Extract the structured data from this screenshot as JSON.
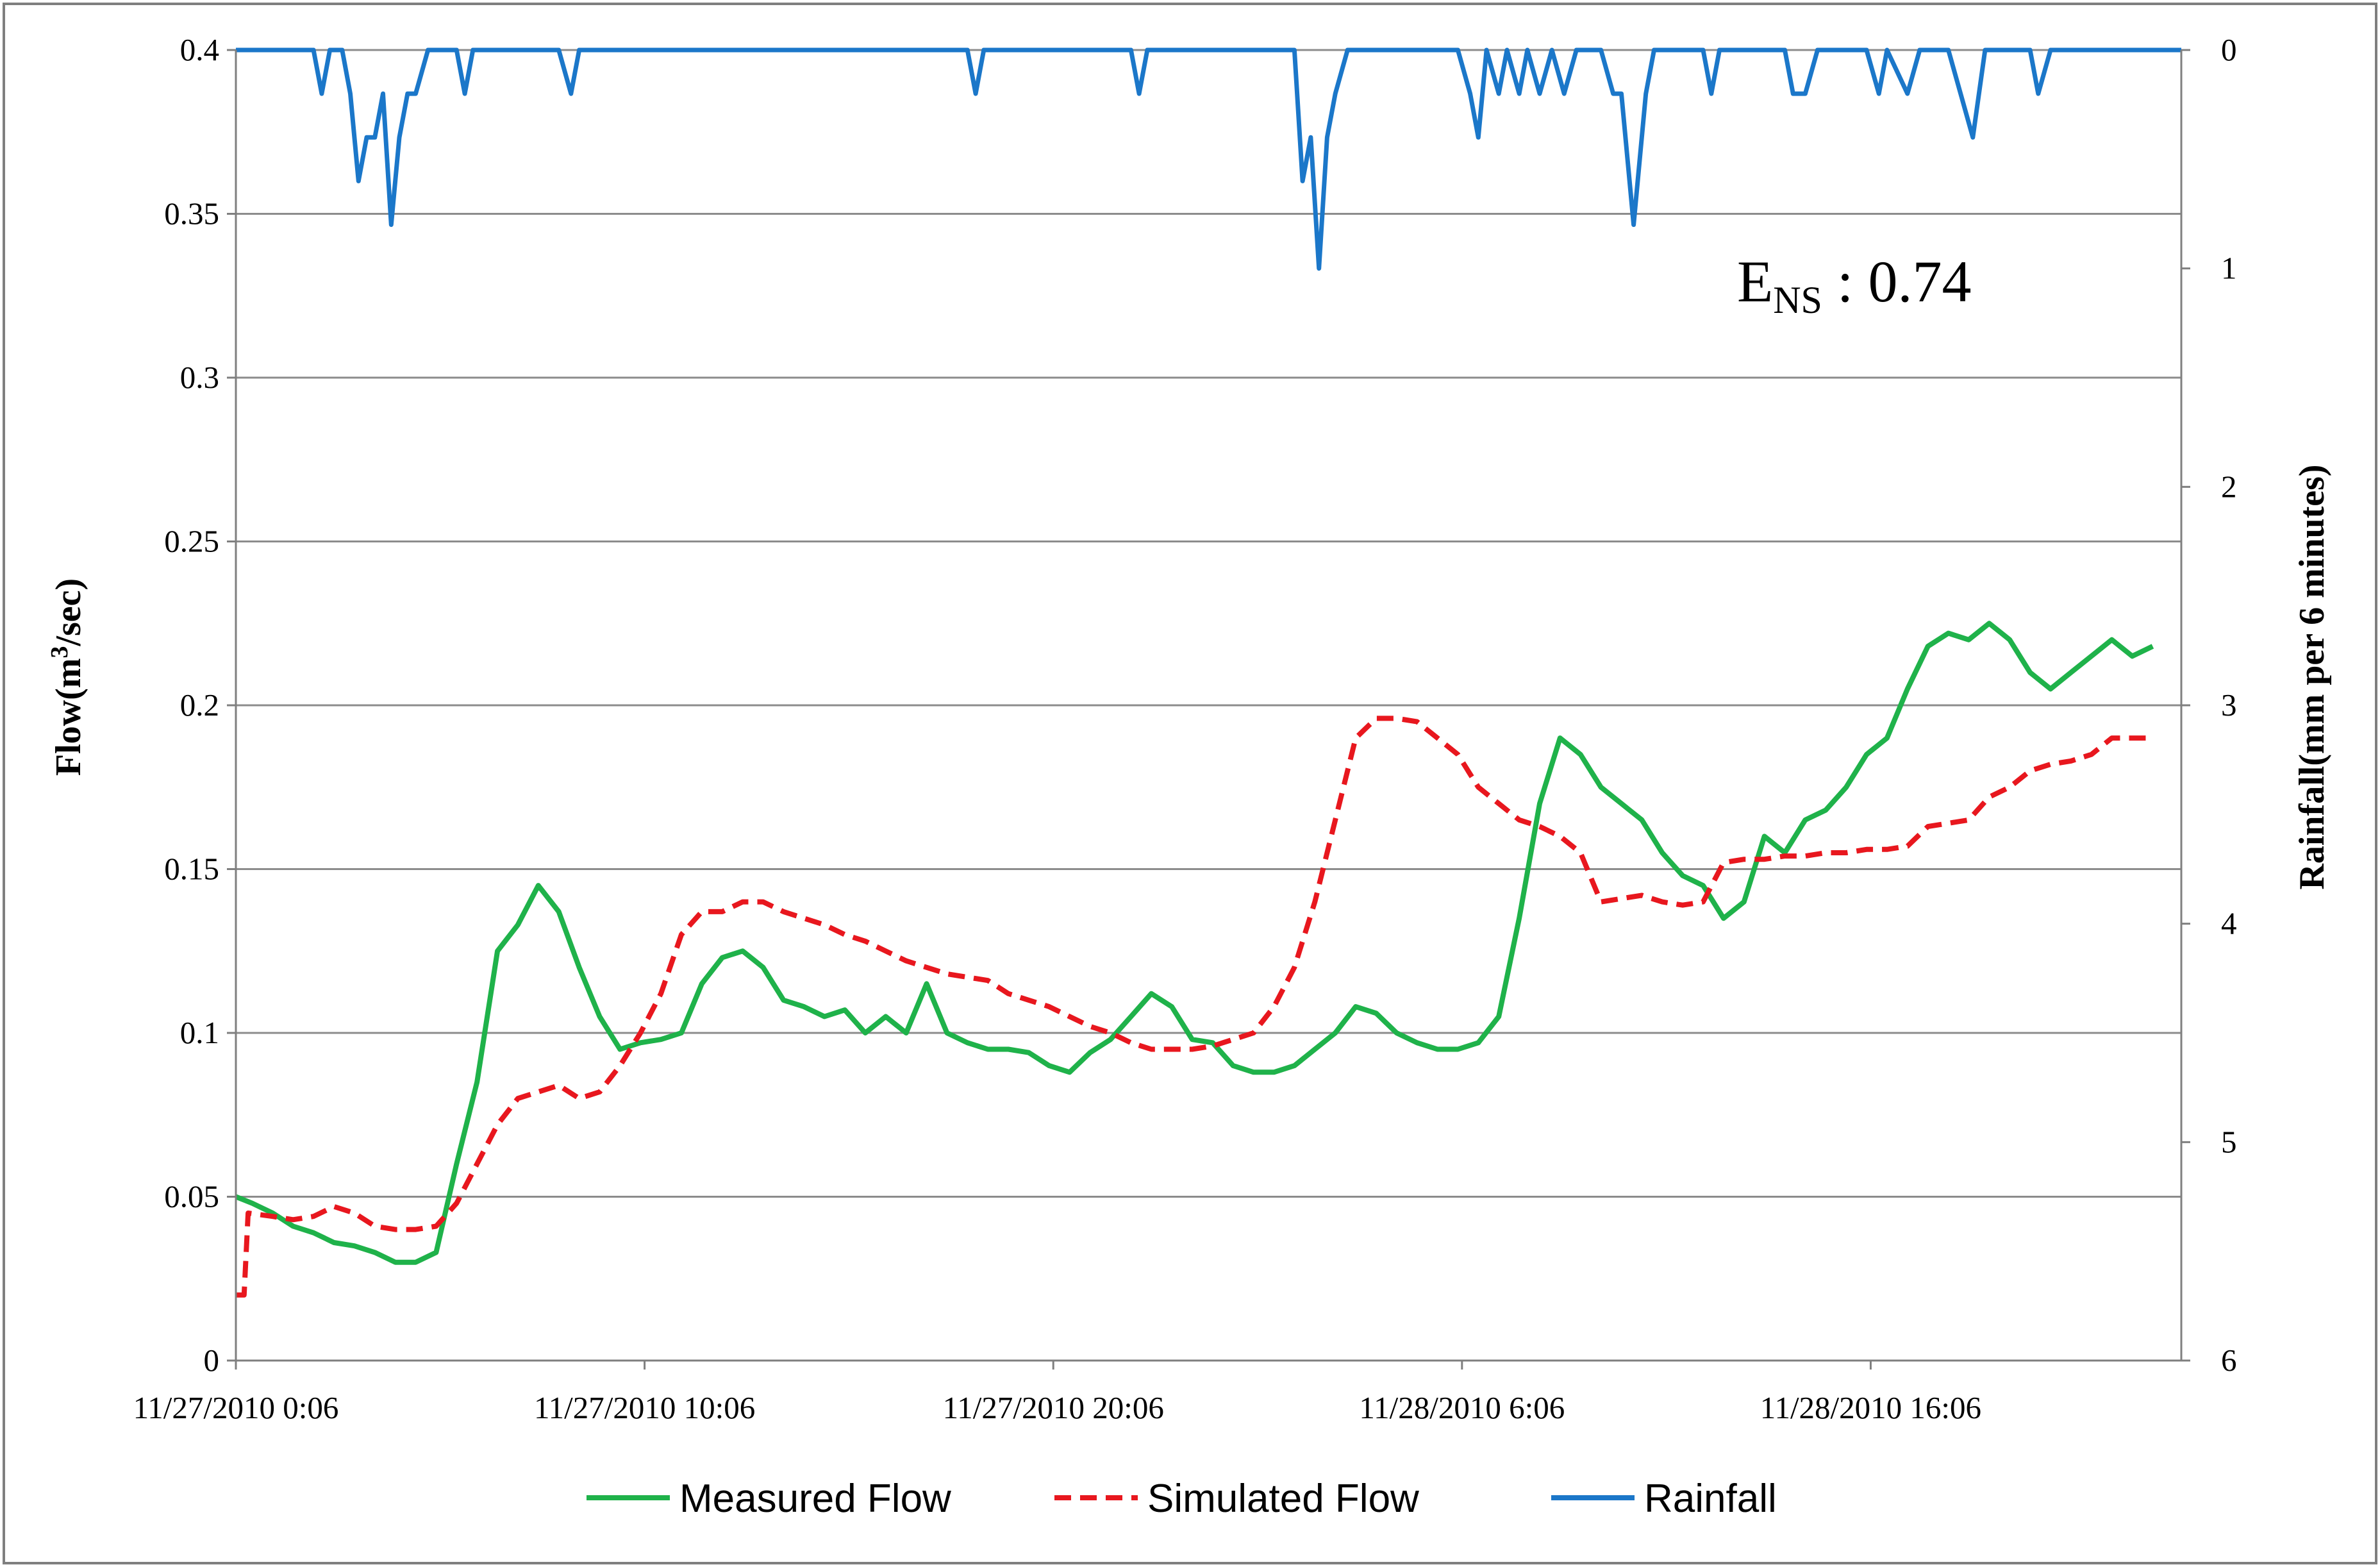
{
  "chart_data": {
    "type": "line",
    "ylabel_left_prefix": "Flow(m",
    "ylabel_left_sup": "3",
    "ylabel_left_suffix": "/sec)",
    "ylabel_right": "Rainfall(mm  per 6 minutes)",
    "ylim_left": [
      0,
      0.4
    ],
    "ylim_right_inverted": [
      0,
      6
    ],
    "yticks_left": [
      "0",
      "0.05",
      "0.1",
      "0.15",
      "0.2",
      "0.25",
      "0.3",
      "0.35",
      "0.4"
    ],
    "yticks_right": [
      "0",
      "1",
      "2",
      "3",
      "4",
      "5",
      "6"
    ],
    "x_tick_labels": [
      "11/27/2010 0:06",
      "11/27/2010 10:06",
      "11/27/2010 20:06",
      "11/28/2010 6:06",
      "11/28/2010 16:06"
    ],
    "x_unit": "hours after 11/27/2010 0:00",
    "xlim": [
      0.1,
      47.7
    ],
    "grid": "horizontal",
    "legend_position": "bottom",
    "annotation": {
      "main": "E",
      "sub": "NS",
      "rest": " : 0.74"
    },
    "series": [
      {
        "name": "Measured Flow",
        "color": "#1fb24a",
        "style": "solid",
        "axis": "left",
        "points": [
          [
            0.1,
            0.05
          ],
          [
            0.5,
            0.048
          ],
          [
            1.0,
            0.045
          ],
          [
            1.5,
            0.041
          ],
          [
            2.0,
            0.039
          ],
          [
            2.5,
            0.036
          ],
          [
            3.0,
            0.035
          ],
          [
            3.5,
            0.033
          ],
          [
            4.0,
            0.03
          ],
          [
            4.5,
            0.03
          ],
          [
            5.0,
            0.033
          ],
          [
            5.5,
            0.06
          ],
          [
            6.0,
            0.085
          ],
          [
            6.5,
            0.125
          ],
          [
            7.0,
            0.133
          ],
          [
            7.5,
            0.145
          ],
          [
            8.0,
            0.137
          ],
          [
            8.5,
            0.12
          ],
          [
            9.0,
            0.105
          ],
          [
            9.5,
            0.095
          ],
          [
            10.0,
            0.097
          ],
          [
            10.5,
            0.098
          ],
          [
            11.0,
            0.1
          ],
          [
            11.5,
            0.115
          ],
          [
            12.0,
            0.123
          ],
          [
            12.5,
            0.125
          ],
          [
            13.0,
            0.12
          ],
          [
            13.5,
            0.11
          ],
          [
            14.0,
            0.108
          ],
          [
            14.5,
            0.105
          ],
          [
            15.0,
            0.107
          ],
          [
            15.5,
            0.1
          ],
          [
            16.0,
            0.105
          ],
          [
            16.5,
            0.1
          ],
          [
            17.0,
            0.115
          ],
          [
            17.5,
            0.1
          ],
          [
            18.0,
            0.097
          ],
          [
            18.5,
            0.095
          ],
          [
            19.0,
            0.095
          ],
          [
            19.5,
            0.094
          ],
          [
            20.0,
            0.09
          ],
          [
            20.5,
            0.088
          ],
          [
            21.0,
            0.094
          ],
          [
            21.5,
            0.098
          ],
          [
            22.0,
            0.105
          ],
          [
            22.5,
            0.112
          ],
          [
            23.0,
            0.108
          ],
          [
            23.5,
            0.098
          ],
          [
            24.0,
            0.097
          ],
          [
            24.5,
            0.09
          ],
          [
            25.0,
            0.088
          ],
          [
            25.5,
            0.088
          ],
          [
            26.0,
            0.09
          ],
          [
            26.5,
            0.095
          ],
          [
            27.0,
            0.1
          ],
          [
            27.5,
            0.108
          ],
          [
            28.0,
            0.106
          ],
          [
            28.5,
            0.1
          ],
          [
            29.0,
            0.097
          ],
          [
            29.5,
            0.095
          ],
          [
            30.0,
            0.095
          ],
          [
            30.5,
            0.097
          ],
          [
            31.0,
            0.105
          ],
          [
            31.5,
            0.135
          ],
          [
            32.0,
            0.17
          ],
          [
            32.5,
            0.19
          ],
          [
            33.0,
            0.185
          ],
          [
            33.5,
            0.175
          ],
          [
            34.0,
            0.17
          ],
          [
            34.5,
            0.165
          ],
          [
            35.0,
            0.155
          ],
          [
            35.5,
            0.148
          ],
          [
            36.0,
            0.145
          ],
          [
            36.5,
            0.135
          ],
          [
            37.0,
            0.14
          ],
          [
            37.5,
            0.16
          ],
          [
            38.0,
            0.155
          ],
          [
            38.5,
            0.165
          ],
          [
            39.0,
            0.168
          ],
          [
            39.5,
            0.175
          ],
          [
            40.0,
            0.185
          ],
          [
            40.5,
            0.19
          ],
          [
            41.0,
            0.205
          ],
          [
            41.5,
            0.218
          ],
          [
            42.0,
            0.222
          ],
          [
            42.5,
            0.22
          ],
          [
            43.0,
            0.225
          ],
          [
            43.5,
            0.22
          ],
          [
            44.0,
            0.21
          ],
          [
            44.5,
            0.205
          ],
          [
            45.0,
            0.21
          ],
          [
            45.5,
            0.215
          ],
          [
            46.0,
            0.22
          ],
          [
            46.5,
            0.215
          ],
          [
            47.0,
            0.218
          ]
        ]
      },
      {
        "name": "Simulated Flow",
        "color": "#e8171e",
        "style": "dashed",
        "axis": "left",
        "points": [
          [
            0.1,
            0.02
          ],
          [
            0.3,
            0.02
          ],
          [
            0.4,
            0.045
          ],
          [
            1.0,
            0.044
          ],
          [
            1.5,
            0.043
          ],
          [
            2.0,
            0.044
          ],
          [
            2.5,
            0.047
          ],
          [
            3.0,
            0.045
          ],
          [
            3.5,
            0.041
          ],
          [
            4.0,
            0.04
          ],
          [
            4.5,
            0.04
          ],
          [
            5.0,
            0.041
          ],
          [
            5.5,
            0.048
          ],
          [
            6.0,
            0.06
          ],
          [
            6.5,
            0.072
          ],
          [
            7.0,
            0.08
          ],
          [
            7.5,
            0.082
          ],
          [
            8.0,
            0.084
          ],
          [
            8.5,
            0.08
          ],
          [
            9.0,
            0.082
          ],
          [
            9.5,
            0.09
          ],
          [
            10.0,
            0.1
          ],
          [
            10.5,
            0.112
          ],
          [
            11.0,
            0.13
          ],
          [
            11.5,
            0.137
          ],
          [
            12.0,
            0.137
          ],
          [
            12.5,
            0.14
          ],
          [
            13.0,
            0.14
          ],
          [
            13.5,
            0.137
          ],
          [
            14.0,
            0.135
          ],
          [
            14.5,
            0.133
          ],
          [
            15.0,
            0.13
          ],
          [
            15.5,
            0.128
          ],
          [
            16.0,
            0.125
          ],
          [
            16.5,
            0.122
          ],
          [
            17.0,
            0.12
          ],
          [
            17.5,
            0.118
          ],
          [
            18.0,
            0.117
          ],
          [
            18.5,
            0.116
          ],
          [
            19.0,
            0.112
          ],
          [
            19.5,
            0.11
          ],
          [
            20.0,
            0.108
          ],
          [
            20.5,
            0.105
          ],
          [
            21.0,
            0.102
          ],
          [
            21.5,
            0.1
          ],
          [
            22.0,
            0.097
          ],
          [
            22.5,
            0.095
          ],
          [
            23.0,
            0.095
          ],
          [
            23.5,
            0.095
          ],
          [
            24.0,
            0.096
          ],
          [
            24.5,
            0.098
          ],
          [
            25.0,
            0.1
          ],
          [
            25.5,
            0.108
          ],
          [
            26.0,
            0.12
          ],
          [
            26.5,
            0.14
          ],
          [
            27.0,
            0.165
          ],
          [
            27.5,
            0.19
          ],
          [
            28.0,
            0.196
          ],
          [
            28.5,
            0.196
          ],
          [
            29.0,
            0.195
          ],
          [
            29.5,
            0.19
          ],
          [
            30.0,
            0.185
          ],
          [
            30.5,
            0.175
          ],
          [
            31.0,
            0.17
          ],
          [
            31.5,
            0.165
          ],
          [
            32.0,
            0.163
          ],
          [
            32.5,
            0.16
          ],
          [
            33.0,
            0.155
          ],
          [
            33.5,
            0.14
          ],
          [
            34.0,
            0.141
          ],
          [
            34.5,
            0.142
          ],
          [
            35.0,
            0.14
          ],
          [
            35.5,
            0.139
          ],
          [
            36.0,
            0.14
          ],
          [
            36.5,
            0.152
          ],
          [
            37.0,
            0.153
          ],
          [
            37.5,
            0.153
          ],
          [
            38.0,
            0.154
          ],
          [
            38.5,
            0.154
          ],
          [
            39.0,
            0.155
          ],
          [
            39.5,
            0.155
          ],
          [
            40.0,
            0.156
          ],
          [
            40.5,
            0.156
          ],
          [
            41.0,
            0.157
          ],
          [
            41.5,
            0.163
          ],
          [
            42.0,
            0.164
          ],
          [
            42.5,
            0.165
          ],
          [
            43.0,
            0.172
          ],
          [
            43.5,
            0.175
          ],
          [
            44.0,
            0.18
          ],
          [
            44.5,
            0.182
          ],
          [
            45.0,
            0.183
          ],
          [
            45.5,
            0.185
          ],
          [
            46.0,
            0.19
          ],
          [
            46.5,
            0.19
          ],
          [
            47.0,
            0.19
          ]
        ]
      },
      {
        "name": "Rainfall",
        "color": "#1b77c9",
        "style": "solid",
        "axis": "right",
        "points": [
          [
            0.1,
            0
          ],
          [
            2.0,
            0
          ],
          [
            2.2,
            0.2
          ],
          [
            2.4,
            0
          ],
          [
            2.7,
            0
          ],
          [
            2.9,
            0.2
          ],
          [
            3.1,
            0.6
          ],
          [
            3.3,
            0.4
          ],
          [
            3.5,
            0.4
          ],
          [
            3.7,
            0.2
          ],
          [
            3.9,
            0.8
          ],
          [
            4.1,
            0.4
          ],
          [
            4.3,
            0.2
          ],
          [
            4.5,
            0.2
          ],
          [
            4.8,
            0
          ],
          [
            5.5,
            0
          ],
          [
            5.7,
            0.2
          ],
          [
            5.9,
            0
          ],
          [
            8.0,
            0
          ],
          [
            8.3,
            0.2
          ],
          [
            8.5,
            0
          ],
          [
            18.0,
            0
          ],
          [
            18.2,
            0.2
          ],
          [
            18.4,
            0
          ],
          [
            22.0,
            0
          ],
          [
            22.2,
            0.2
          ],
          [
            22.4,
            0
          ],
          [
            26.0,
            0
          ],
          [
            26.2,
            0.6
          ],
          [
            26.4,
            0.4
          ],
          [
            26.6,
            1.0
          ],
          [
            26.8,
            0.4
          ],
          [
            27.0,
            0.2
          ],
          [
            27.3,
            0
          ],
          [
            30.0,
            0
          ],
          [
            30.3,
            0.2
          ],
          [
            30.5,
            0.4
          ],
          [
            30.7,
            0
          ],
          [
            31.0,
            0.2
          ],
          [
            31.2,
            0
          ],
          [
            31.5,
            0.2
          ],
          [
            31.7,
            0
          ],
          [
            32.0,
            0.2
          ],
          [
            32.3,
            0
          ],
          [
            32.6,
            0.2
          ],
          [
            32.9,
            0
          ],
          [
            33.5,
            0
          ],
          [
            33.8,
            0.2
          ],
          [
            34.0,
            0.2
          ],
          [
            34.3,
            0.8
          ],
          [
            34.6,
            0.2
          ],
          [
            34.8,
            0
          ],
          [
            36.0,
            0
          ],
          [
            36.2,
            0.2
          ],
          [
            36.4,
            0
          ],
          [
            38.0,
            0
          ],
          [
            38.2,
            0.2
          ],
          [
            38.5,
            0.2
          ],
          [
            38.8,
            0
          ],
          [
            40.0,
            0
          ],
          [
            40.3,
            0.2
          ],
          [
            40.5,
            0
          ],
          [
            41.0,
            0.2
          ],
          [
            41.3,
            0
          ],
          [
            42.0,
            0
          ],
          [
            42.3,
            0.2
          ],
          [
            42.6,
            0.4
          ],
          [
            42.9,
            0
          ],
          [
            44.0,
            0
          ],
          [
            44.2,
            0.2
          ],
          [
            44.5,
            0
          ],
          [
            47.7,
            0
          ]
        ]
      }
    ]
  }
}
